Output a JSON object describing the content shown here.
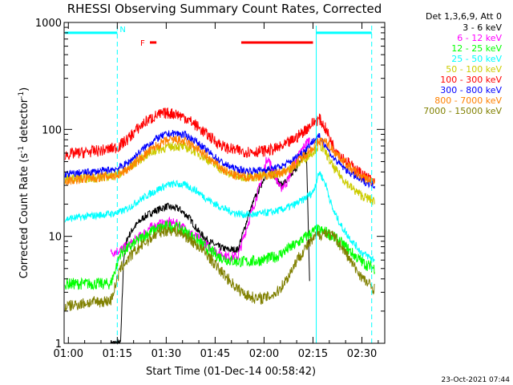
{
  "chart_data": {
    "type": "line",
    "title": "RHESSI Observing Summary Count Rates, Corrected",
    "xlabel": "Start Time (01-Dec-14 00:58:42)",
    "ylabel_main": "Corrected Count Rate (s",
    "ylabel_sup1": "-1",
    "ylabel_mid": " detector",
    "ylabel_sup2": "-1",
    "ylabel_end": ")",
    "yscale": "log",
    "ylim": [
      1,
      1000
    ],
    "xlim_minutes": [
      58.7,
      157.0
    ],
    "x_unit": "minutes after 00:00 UT",
    "x_ticks": [
      {
        "value": 60,
        "label": "01:00"
      },
      {
        "value": 75,
        "label": "01:15"
      },
      {
        "value": 90,
        "label": "01:30"
      },
      {
        "value": 105,
        "label": "01:45"
      },
      {
        "value": 120,
        "label": "02:00"
      },
      {
        "value": 135,
        "label": "02:15"
      },
      {
        "value": 150,
        "label": "02:30"
      }
    ],
    "y_ticks": [
      {
        "value": 1,
        "label": "1"
      },
      {
        "value": 10,
        "label": "10"
      },
      {
        "value": 100,
        "label": "100"
      },
      {
        "value": 1000,
        "label": "1000"
      }
    ],
    "legend_header": "Det 1,3,6,9, Att 0",
    "legend_placement": "right",
    "series": [
      {
        "name": "3 - 6 keV",
        "color": "#000000",
        "x": [
          73,
          76,
          77,
          78,
          80,
          83,
          86,
          90,
          94,
          97,
          100,
          103,
          106,
          109,
          112,
          115,
          117,
          119,
          121,
          123,
          125,
          127,
          129,
          131,
          133,
          134
        ],
        "y": [
          1.0,
          1.0,
          6.5,
          9.5,
          12,
          15,
          17,
          19,
          18,
          15,
          11,
          9,
          8,
          7.5,
          7.5,
          15,
          22,
          30,
          42,
          38,
          30,
          33,
          40,
          50,
          60,
          3.5
        ]
      },
      {
        "name": "6 - 12 keV",
        "color": "#ff00ff",
        "x": [
          73,
          76,
          79,
          82,
          85,
          88,
          91,
          94,
          97,
          100,
          103,
          106,
          109,
          112,
          115,
          117,
          119,
          121,
          123,
          125,
          127,
          129,
          131,
          133,
          134
        ],
        "y": [
          7,
          7.5,
          8.5,
          10,
          12,
          13,
          13.5,
          13,
          11,
          9.5,
          8,
          7,
          6.5,
          6.5,
          13,
          20,
          32,
          55,
          40,
          28,
          32,
          45,
          60,
          75,
          80
        ]
      },
      {
        "name": "12 - 25 keV",
        "color": "#00ff00",
        "x": [
          59,
          66,
          73,
          76,
          79,
          82,
          85,
          88,
          91,
          94,
          97,
          100,
          103,
          106,
          109,
          112,
          115,
          118,
          121,
          124,
          127,
          130,
          133,
          136,
          139,
          142,
          145,
          148,
          151,
          154
        ],
        "y": [
          3.6,
          3.6,
          3.6,
          7,
          8,
          9.5,
          11,
          12,
          12.5,
          12,
          10.5,
          9,
          7.5,
          6.5,
          6,
          5.8,
          5.8,
          5.9,
          6.2,
          6.5,
          7.5,
          8.5,
          10,
          11.5,
          11,
          9.5,
          8,
          6.5,
          5.5,
          5.0
        ]
      },
      {
        "name": "25 - 50 keV",
        "color": "#00ffff",
        "x": [
          59,
          63,
          67,
          71,
          75,
          78,
          81,
          84,
          87,
          90,
          93,
          96,
          99,
          102,
          105,
          108,
          111,
          114,
          117,
          120,
          123,
          126,
          129,
          132,
          135,
          137,
          139,
          141,
          144,
          147,
          150,
          154
        ],
        "y": [
          14.5,
          15,
          15.5,
          16,
          16.5,
          18,
          21,
          24,
          27,
          30,
          31,
          30,
          27,
          23,
          20,
          18,
          16.5,
          16,
          16,
          16.5,
          17,
          18,
          19.5,
          22,
          26,
          40,
          30,
          18,
          12,
          9,
          7,
          6
        ]
      },
      {
        "name": "50 - 100 keV",
        "color": "#cccc00",
        "x": [
          59,
          63,
          67,
          71,
          75,
          78,
          81,
          84,
          87,
          90,
          93,
          96,
          99,
          102,
          105,
          108,
          111,
          114,
          117,
          120,
          123,
          126,
          129,
          132,
          135,
          137,
          139,
          141,
          144,
          147,
          150,
          154
        ],
        "y": [
          34,
          35,
          35,
          36,
          38,
          42,
          50,
          58,
          64,
          68,
          70,
          68,
          62,
          54,
          46,
          40,
          37,
          36,
          36,
          37,
          38,
          40,
          44,
          52,
          62,
          72,
          60,
          45,
          35,
          28,
          24,
          21
        ]
      },
      {
        "name": "100 - 300 keV",
        "color": "#ff0000",
        "x": [
          59,
          63,
          67,
          71,
          75,
          78,
          81,
          84,
          87,
          90,
          93,
          96,
          99,
          102,
          105,
          108,
          111,
          114,
          117,
          120,
          123,
          126,
          129,
          132,
          135,
          137,
          139,
          141,
          144,
          147,
          150,
          154
        ],
        "y": [
          58,
          60,
          62,
          64,
          68,
          80,
          100,
          120,
          135,
          142,
          140,
          128,
          110,
          92,
          78,
          68,
          64,
          62,
          62,
          63,
          65,
          70,
          80,
          95,
          115,
          125,
          100,
          72,
          55,
          45,
          38,
          32
        ]
      },
      {
        "name": "300 - 800 keV",
        "color": "#0000ff",
        "x": [
          59,
          63,
          67,
          71,
          75,
          78,
          81,
          84,
          87,
          90,
          93,
          96,
          99,
          102,
          105,
          108,
          111,
          114,
          117,
          120,
          123,
          126,
          129,
          132,
          135,
          137,
          139,
          141,
          144,
          147,
          150,
          154
        ],
        "y": [
          38,
          39,
          40,
          41,
          43,
          48,
          58,
          70,
          82,
          90,
          92,
          88,
          78,
          65,
          55,
          47,
          43,
          41,
          41,
          42,
          43,
          46,
          52,
          62,
          78,
          85,
          70,
          55,
          45,
          38,
          33,
          30
        ]
      },
      {
        "name": "800 - 7000 keV",
        "color": "#ff8000",
        "x": [
          59,
          63,
          67,
          71,
          75,
          78,
          81,
          84,
          87,
          90,
          93,
          96,
          99,
          102,
          105,
          108,
          111,
          114,
          117,
          120,
          123,
          126,
          129,
          132,
          135,
          137,
          139,
          141,
          144,
          147,
          150,
          154
        ],
        "y": [
          33,
          34,
          35,
          36,
          37,
          42,
          50,
          60,
          70,
          78,
          80,
          76,
          68,
          57,
          48,
          41,
          37,
          36,
          36,
          37,
          38,
          40,
          46,
          56,
          68,
          78,
          76,
          65,
          52,
          42,
          36,
          32
        ]
      },
      {
        "name": "7000 - 15000 keV",
        "color": "#808000",
        "x": [
          59,
          66,
          73,
          76,
          79,
          82,
          85,
          88,
          91,
          94,
          97,
          100,
          103,
          106,
          109,
          112,
          115,
          118,
          121,
          124,
          127,
          130,
          133,
          136,
          139,
          142,
          145,
          148,
          151,
          154
        ],
        "y": [
          2.2,
          2.4,
          2.5,
          5,
          6.5,
          8,
          9.5,
          11,
          11.5,
          11,
          9.5,
          8,
          6.5,
          5,
          4,
          3.2,
          2.8,
          2.6,
          2.7,
          3,
          4,
          6,
          8,
          10,
          11,
          9.5,
          7,
          5,
          3.8,
          3.2
        ]
      }
    ],
    "annotations": [
      {
        "label": "N",
        "color": "#00ffff"
      },
      {
        "label": "F",
        "color": "#ff0000"
      }
    ],
    "status_bars": {
      "night": {
        "color": "#00ffff",
        "level": 800,
        "ranges": [
          [
            59,
            75
          ],
          [
            136,
            153
          ]
        ]
      },
      "flare": {
        "color": "#ff0000",
        "level": 650,
        "ranges": [
          [
            85,
            87
          ],
          [
            113,
            135
          ]
        ]
      }
    },
    "vertical_markers": {
      "dashed": {
        "color": "#00ffff",
        "x": [
          75,
          153
        ]
      },
      "solid": {
        "color": "#00ffff",
        "x": [
          136
        ]
      }
    },
    "timestamp": "23-Oct-2021 07:44"
  }
}
